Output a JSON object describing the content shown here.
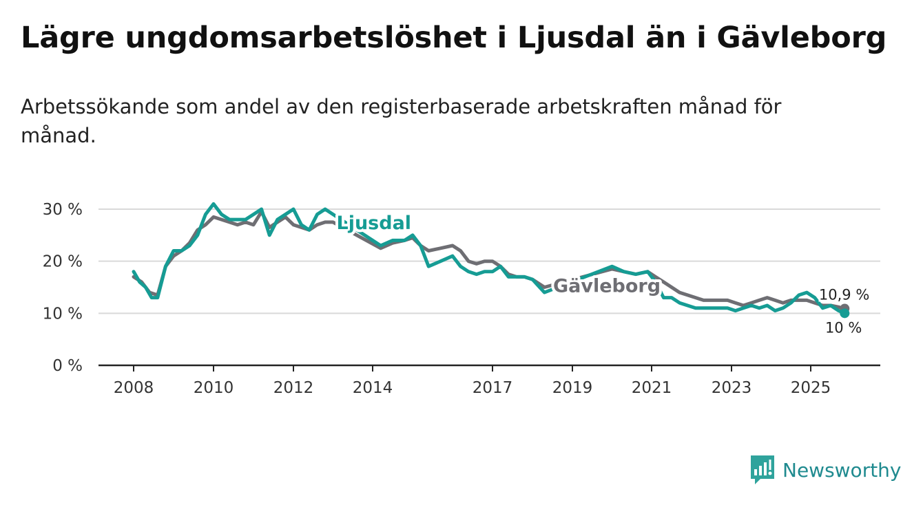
{
  "title": "Lägre ungdomsarbetslöshet i Ljusdal än i Gävleborg",
  "subtitle": "Arbetssökande som andel av den registerbaserade arbetskraften månad för månad.",
  "brand": "Newsworthy",
  "colors": {
    "ljusdal": "#169c94",
    "gavleborg": "#6e6e73",
    "grid": "#d9d9d9",
    "axis": "#222222",
    "brand": "#1f8a8f"
  },
  "chart_data": {
    "type": "line",
    "ylim": [
      0,
      30
    ],
    "xlim": [
      2008,
      2026
    ],
    "y_ticks": [
      0,
      10,
      20,
      30
    ],
    "y_tick_labels": [
      "0 %",
      "10 %",
      "20 %",
      "30 %"
    ],
    "x_ticks": [
      2008,
      2010,
      2012,
      2014,
      2017,
      2019,
      2021,
      2023,
      2025
    ],
    "x_tick_labels": [
      "2008",
      "2010",
      "2012",
      "2014",
      "2017",
      "2019",
      "2021",
      "2023",
      "2025"
    ],
    "series": [
      {
        "name": "Gävleborg",
        "label": "Gävleborg",
        "end_label": "10,9 %",
        "x": [
          2008.0,
          2008.2,
          2008.4,
          2008.6,
          2008.8,
          2009.0,
          2009.2,
          2009.4,
          2009.6,
          2009.8,
          2010.0,
          2010.2,
          2010.4,
          2010.6,
          2010.8,
          2011.0,
          2011.2,
          2011.4,
          2011.6,
          2011.8,
          2012.0,
          2012.2,
          2012.4,
          2012.6,
          2012.8,
          2013.0,
          2014.2,
          2014.5,
          2014.8,
          2015.0,
          2015.2,
          2015.4,
          2015.7,
          2016.0,
          2016.2,
          2016.4,
          2016.6,
          2016.8,
          2017.0,
          2017.2,
          2017.4,
          2017.6,
          2017.8,
          2018.0,
          2018.3,
          2020.0,
          2020.3,
          2020.6,
          2020.9,
          2021.1,
          2021.3,
          2021.5,
          2021.7,
          2021.9,
          2022.1,
          2022.3,
          2022.5,
          2022.7,
          2022.9,
          2023.1,
          2023.3,
          2023.5,
          2023.7,
          2023.9,
          2024.1,
          2024.3,
          2024.5,
          2024.7,
          2024.9,
          2025.1,
          2025.3,
          2025.5,
          2025.7,
          2025.85
        ],
        "values": [
          17,
          16,
          14,
          13.5,
          19,
          21,
          22,
          23.5,
          26,
          27,
          28.5,
          28,
          27.5,
          27,
          27.5,
          27,
          29.5,
          26.5,
          27.5,
          28.5,
          27,
          26.5,
          26,
          27,
          27.5,
          27.5,
          22.5,
          23.5,
          24,
          24.5,
          23,
          22,
          22.5,
          23,
          22,
          20,
          19.5,
          20,
          20,
          19,
          17.5,
          17,
          17,
          16.5,
          15,
          18.5,
          18,
          17.5,
          18,
          17,
          16,
          15,
          14,
          13.5,
          13,
          12.5,
          12.5,
          12.5,
          12.5,
          12,
          11.5,
          12,
          12.5,
          13,
          12.5,
          12,
          12.5,
          12.5,
          12.5,
          12,
          11.5,
          11.5,
          11.2,
          10.9
        ]
      },
      {
        "name": "Ljusdal",
        "label": "Ljusdal",
        "end_label": "10 %",
        "x": [
          2008.0,
          2008.15,
          2008.3,
          2008.45,
          2008.6,
          2008.8,
          2009.0,
          2009.2,
          2009.4,
          2009.6,
          2009.8,
          2010.0,
          2010.2,
          2010.4,
          2010.6,
          2010.8,
          2011.0,
          2011.2,
          2011.4,
          2011.6,
          2011.8,
          2012.0,
          2012.2,
          2012.4,
          2012.6,
          2012.8,
          2013.0,
          2014.2,
          2014.5,
          2014.8,
          2015.0,
          2015.2,
          2015.4,
          2015.7,
          2016.0,
          2016.2,
          2016.4,
          2016.6,
          2016.8,
          2017.0,
          2017.2,
          2017.4,
          2017.6,
          2017.8,
          2018.0,
          2018.3,
          2020.0,
          2020.3,
          2020.6,
          2020.9,
          2021.1,
          2021.3,
          2021.5,
          2021.7,
          2021.9,
          2022.1,
          2022.3,
          2022.5,
          2022.7,
          2022.9,
          2023.1,
          2023.3,
          2023.5,
          2023.7,
          2023.9,
          2024.1,
          2024.3,
          2024.5,
          2024.7,
          2024.9,
          2025.1,
          2025.3,
          2025.5,
          2025.7,
          2025.85
        ],
        "values": [
          18,
          16,
          15,
          13,
          13,
          19,
          22,
          22,
          23,
          25,
          29,
          31,
          29,
          28,
          28,
          28,
          29,
          30,
          25,
          28,
          29,
          30,
          27,
          26,
          29,
          30,
          29,
          23,
          24,
          24,
          25,
          23,
          19,
          20,
          21,
          19,
          18,
          17.5,
          18,
          18,
          19,
          17,
          17,
          17,
          16.5,
          14,
          19,
          18,
          17.5,
          18,
          16,
          13,
          13,
          12,
          11.5,
          11,
          11,
          11,
          11,
          11,
          10.5,
          11,
          11.5,
          11,
          11.5,
          10.5,
          11,
          12,
          13.5,
          14,
          13,
          11,
          11.5,
          10.5,
          10
        ]
      }
    ]
  }
}
